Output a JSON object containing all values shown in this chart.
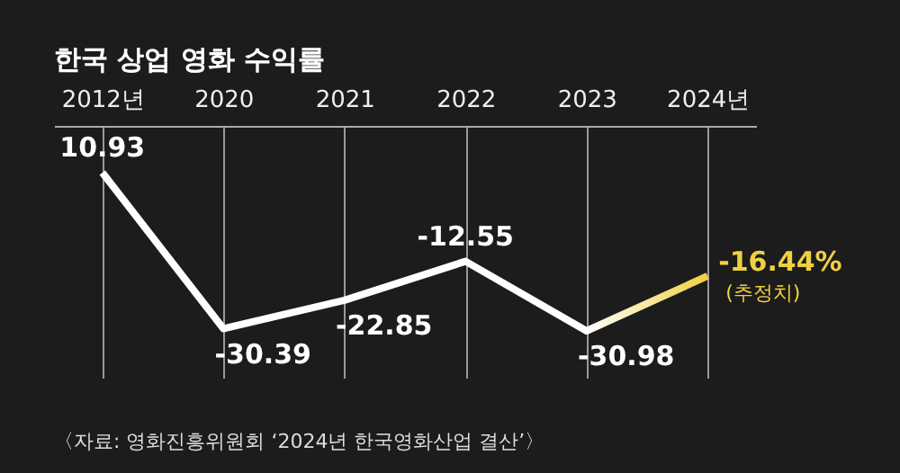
{
  "chart_data": {
    "type": "line",
    "title": "한국 상업 영화 수익률",
    "categories": [
      "2012년",
      "2020",
      "2021",
      "2022",
      "2023",
      "2024년"
    ],
    "series": [
      {
        "colors": [
          "#ffffff",
          "#ffffff",
          "#ffffff",
          "#ffffff",
          "#ffffff",
          "#f0d040"
        ],
        "values": [
          10.93,
          -30.39,
          -22.85,
          -12.55,
          -30.98,
          -16.44
        ],
        "value_labels": [
          "10.93",
          "-30.39",
          "-22.85",
          "-12.55",
          "-30.98",
          "-16.44%"
        ]
      }
    ],
    "annotations": [
      {
        "text": "(추정치)",
        "x": "2024년",
        "y": -16.44
      },
      "〈자료: 영화진흥위원회 ‘2024년 한국영화산업 결산’〉"
    ],
    "grid": "x"
  }
}
